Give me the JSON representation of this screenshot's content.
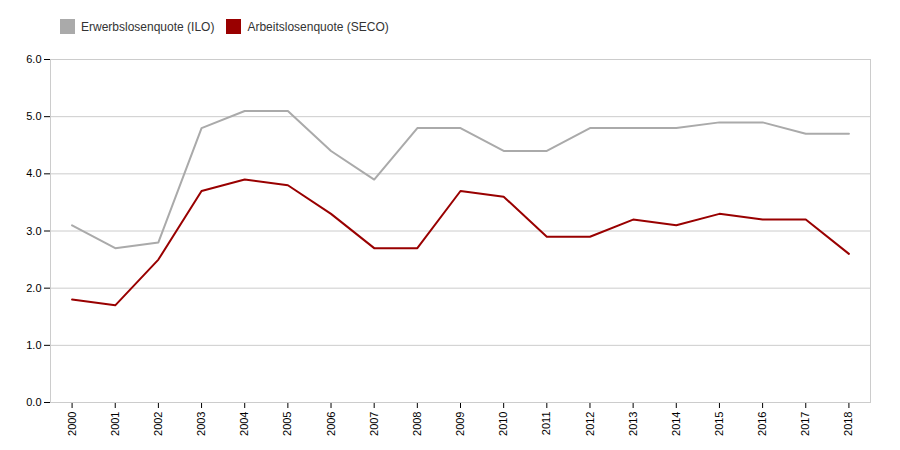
{
  "chart_data": {
    "type": "line",
    "x": [
      2000,
      2001,
      2002,
      2003,
      2004,
      2005,
      2006,
      2007,
      2008,
      2009,
      2010,
      2011,
      2012,
      2013,
      2014,
      2015,
      2016,
      2017,
      2018
    ],
    "series": [
      {
        "name": "Erwerbslosenquote (ILO)",
        "color": "#aaaaaa",
        "values": [
          3.1,
          2.7,
          2.8,
          4.8,
          5.1,
          5.1,
          4.4,
          3.9,
          4.8,
          4.8,
          4.4,
          4.4,
          4.8,
          4.8,
          4.8,
          4.9,
          4.9,
          4.7,
          4.7
        ]
      },
      {
        "name": "Arbeitslosenquote (SECO)",
        "color": "#990000",
        "values": [
          1.8,
          1.7,
          2.5,
          3.7,
          3.9,
          3.8,
          3.3,
          2.7,
          2.7,
          3.7,
          3.6,
          2.9,
          2.9,
          3.2,
          3.1,
          3.3,
          3.2,
          3.2,
          2.6
        ]
      }
    ],
    "xlim": [
      1999.5,
      2018.5
    ],
    "xticks": [
      2000,
      2001,
      2002,
      2003,
      2004,
      2005,
      2006,
      2007,
      2008,
      2009,
      2010,
      2011,
      2012,
      2013,
      2014,
      2015,
      2016,
      2017,
      2018
    ],
    "ylim": [
      0.0,
      6.0
    ],
    "yticks": [
      {
        "value": 0,
        "label": "0.0"
      },
      {
        "value": 1,
        "label": "1.0"
      },
      {
        "value": 2,
        "label": "2.0"
      },
      {
        "value": 3,
        "label": "3.0"
      },
      {
        "value": 4,
        "label": "4.0"
      },
      {
        "value": 5,
        "label": "5.0"
      },
      {
        "value": 6,
        "label": "6.0"
      }
    ],
    "grid": true,
    "legend": "top"
  }
}
